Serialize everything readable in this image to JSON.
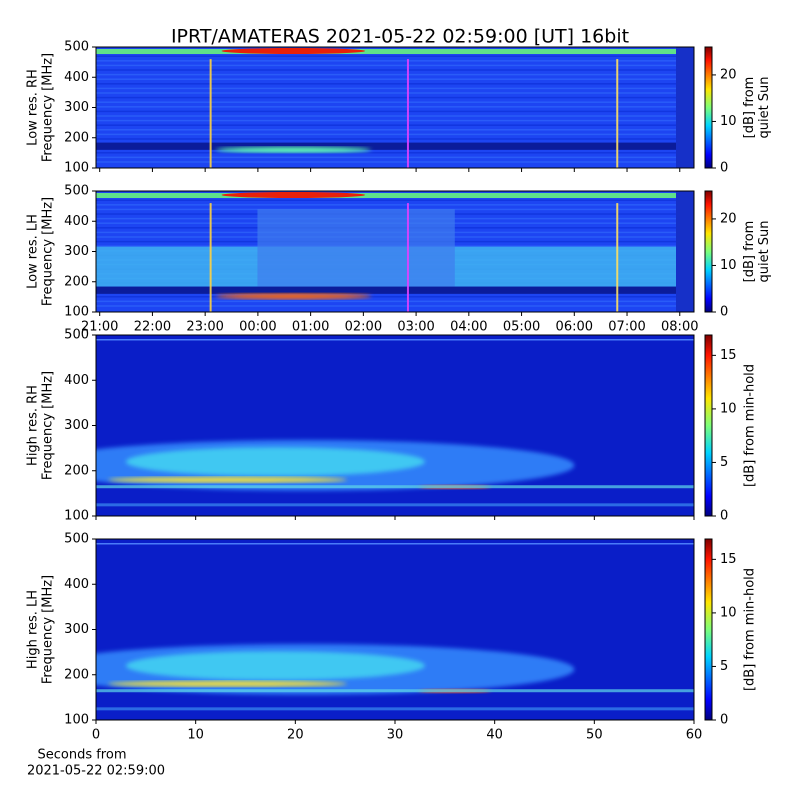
{
  "title": "IPRT/AMATERAS 2021-05-22 02:59:00 [UT]   16bit",
  "chart_data": [
    {
      "type": "heatmap",
      "ylabel": [
        "Low res. RH",
        "Frequency [MHz]"
      ],
      "xlim": [
        20.93,
        32.27
      ],
      "xticks": [
        21,
        22,
        23,
        24,
        25,
        26,
        27,
        28,
        29,
        30,
        31,
        32
      ],
      "show_xtick_labels": false,
      "ylim": [
        100,
        500
      ],
      "yticks": [
        100,
        200,
        300,
        400,
        500
      ],
      "colorbar": {
        "label": [
          "[dB] from",
          "quiet Sun"
        ],
        "lim": [
          0,
          26
        ],
        "ticks": [
          0,
          10,
          20
        ]
      }
    },
    {
      "type": "heatmap",
      "ylabel": [
        "Low res. LH",
        "Frequency [MHz]"
      ],
      "xlim": [
        20.93,
        32.27
      ],
      "xticks": [
        {
          "value": 21,
          "label": "21:00"
        },
        {
          "value": 22,
          "label": "22:00"
        },
        {
          "value": 23,
          "label": "23:00"
        },
        {
          "value": 24,
          "label": "00:00"
        },
        {
          "value": 25,
          "label": "01:00"
        },
        {
          "value": 26,
          "label": "02:00"
        },
        {
          "value": 27,
          "label": "03:00"
        },
        {
          "value": 28,
          "label": "04:00"
        },
        {
          "value": 29,
          "label": "05:00"
        },
        {
          "value": 30,
          "label": "06:00"
        },
        {
          "value": 31,
          "label": "07:00"
        },
        {
          "value": 32,
          "label": "08:00"
        }
      ],
      "show_xtick_labels": true,
      "ylim": [
        100,
        500
      ],
      "yticks": [
        100,
        200,
        300,
        400,
        500
      ],
      "colorbar": {
        "label": [
          "[dB] from",
          "quiet Sun"
        ],
        "lim": [
          0,
          26
        ],
        "ticks": [
          0,
          10,
          20
        ]
      }
    },
    {
      "type": "heatmap",
      "ylabel": [
        "High res. RH",
        "Frequency [MHz]"
      ],
      "xlim": [
        0,
        60
      ],
      "xticks": [
        0,
        10,
        20,
        30,
        40,
        50,
        60
      ],
      "show_xtick_labels": false,
      "ylim": [
        100,
        500
      ],
      "yticks": [
        100,
        200,
        300,
        400,
        500
      ],
      "colorbar": {
        "label": [
          "[dB] from min-hold"
        ],
        "lim": [
          0,
          16.9
        ],
        "ticks": [
          0,
          5,
          10,
          15
        ]
      }
    },
    {
      "type": "heatmap",
      "ylabel": [
        "High res. LH",
        "Frequency [MHz]"
      ],
      "xlim": [
        0,
        60
      ],
      "xticks": [
        0,
        10,
        20,
        30,
        40,
        50,
        60
      ],
      "show_xtick_labels": true,
      "xlabel": [
        "Seconds from",
        "2021-05-22 02:59:00"
      ],
      "ylim": [
        100,
        500
      ],
      "yticks": [
        100,
        200,
        300,
        400,
        500
      ],
      "colorbar": {
        "label": [
          "[dB] from min-hold"
        ],
        "lim": [
          0,
          16.9
        ],
        "ticks": [
          0,
          5,
          10,
          15
        ]
      }
    }
  ]
}
